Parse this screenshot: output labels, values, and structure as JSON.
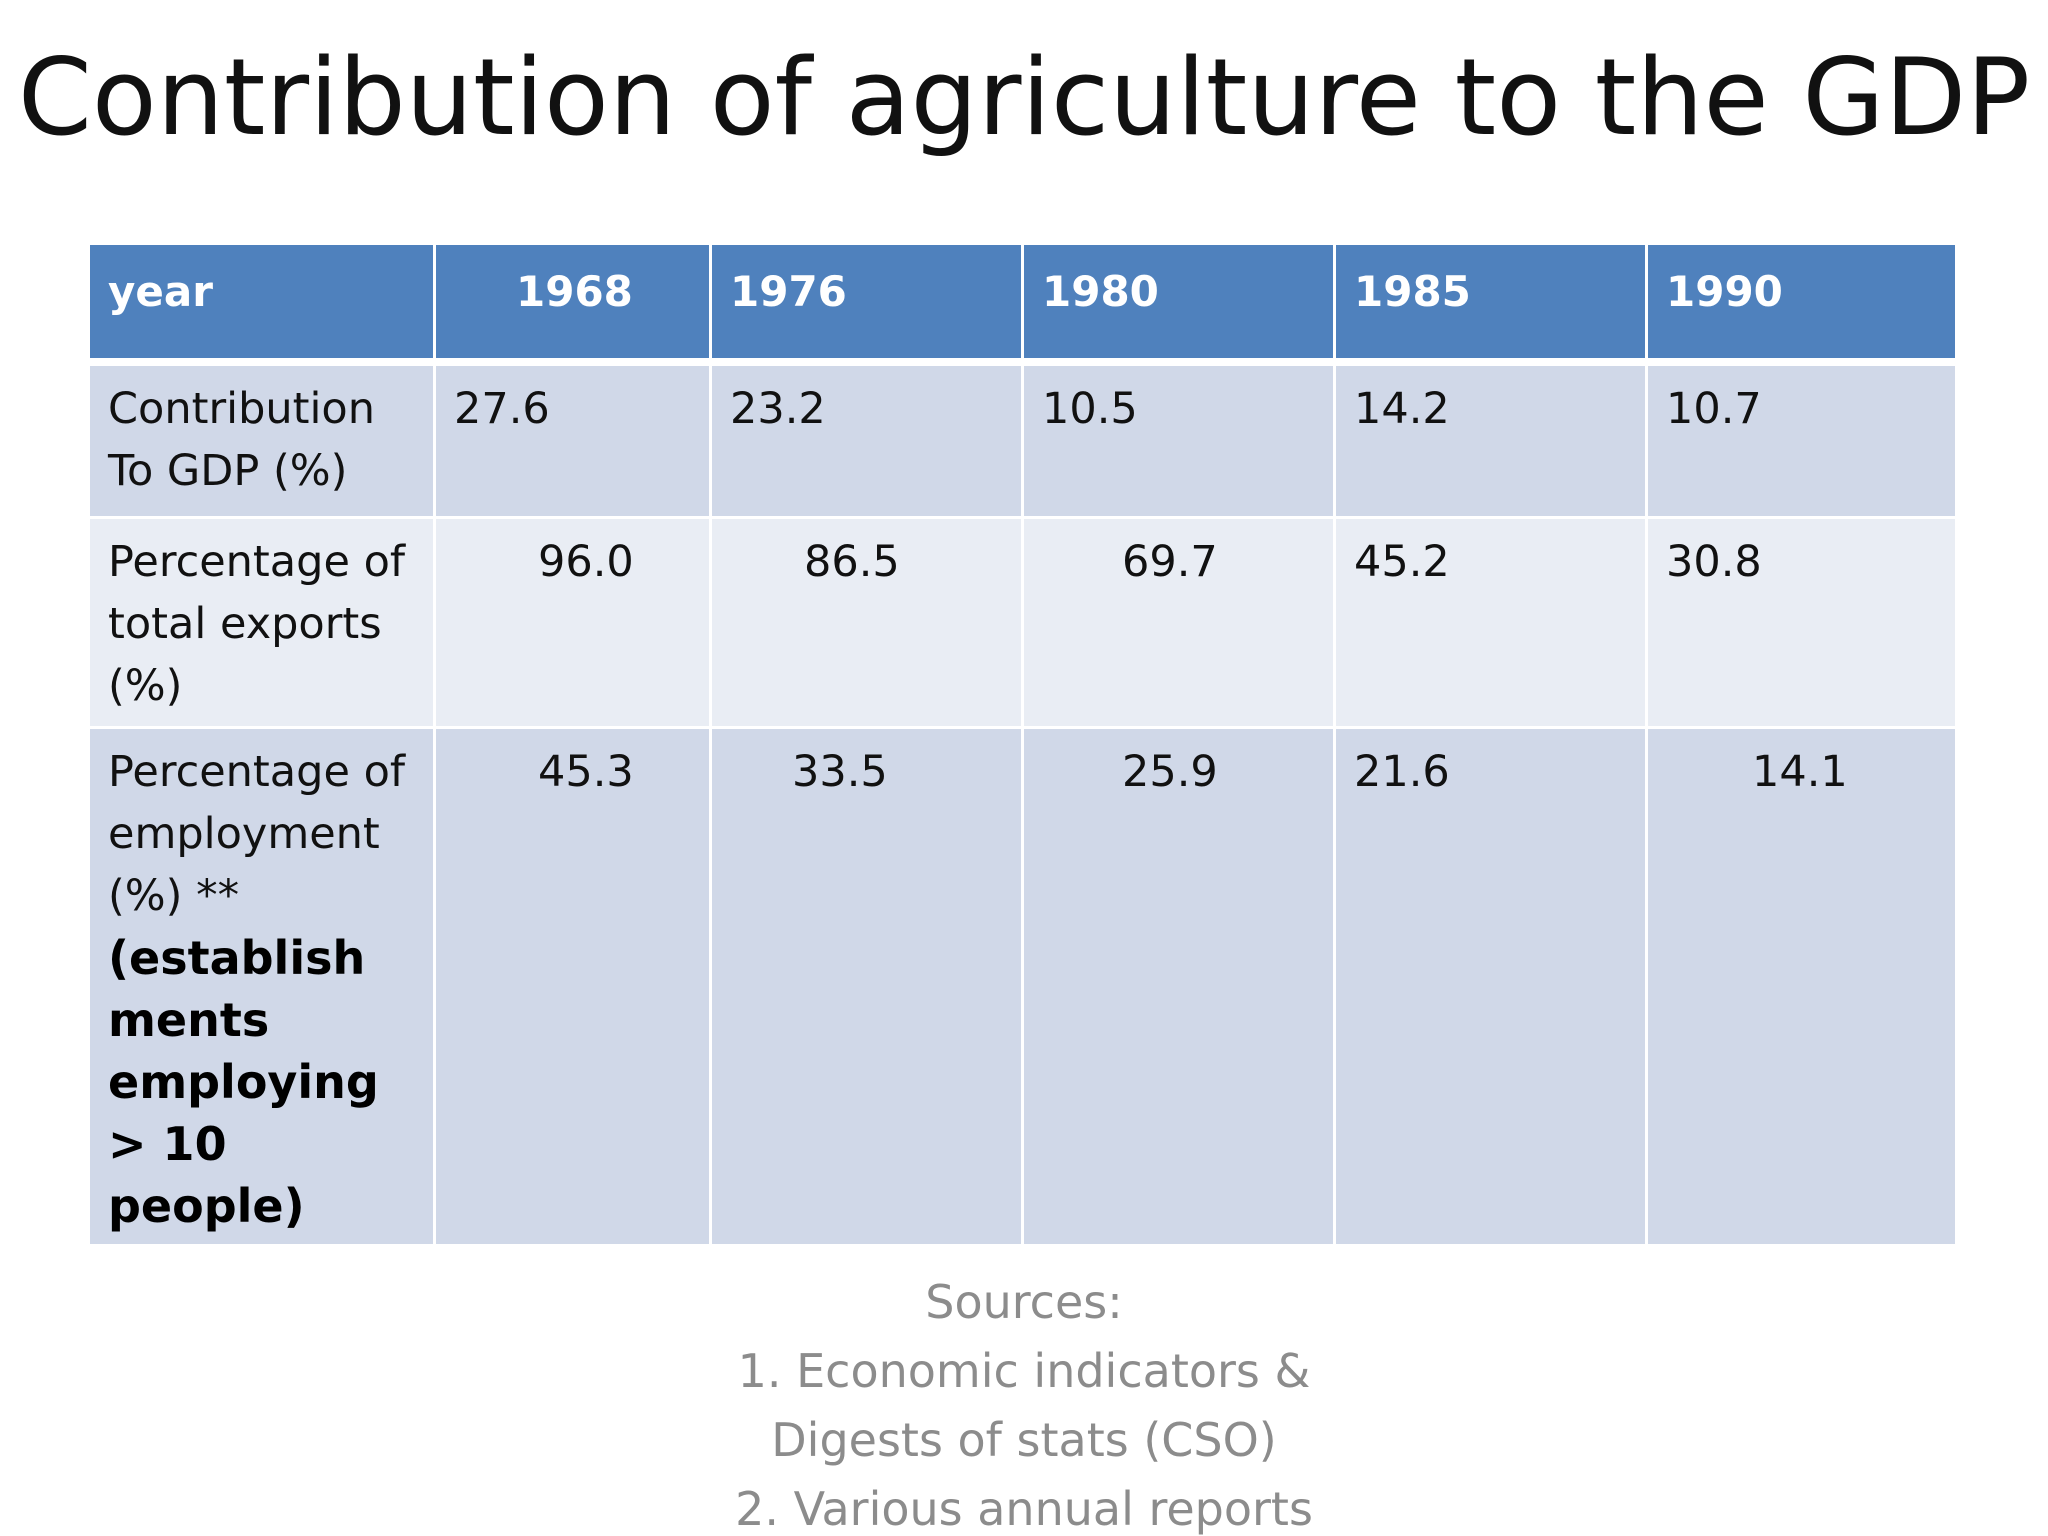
{
  "slide": {
    "title": "Contribution of agriculture to the GDP"
  },
  "table": {
    "header": {
      "label": "year",
      "years": [
        "1968",
        "1976",
        "1980",
        "1985",
        "1990"
      ]
    },
    "rows": [
      {
        "label": "Contribution\nTo GDP (%)",
        "values": [
          "27.6",
          "23.2",
          "10.5",
          "14.2",
          "10.7"
        ]
      },
      {
        "label": "Percentage of\ntotal exports\n(%)",
        "values": [
          "96.0",
          "86.5",
          "69.7",
          "45.2",
          "30.8"
        ]
      },
      {
        "label": "Percentage of\nemployment\n(%) **",
        "note": "(establish\nments\nemploying\n> 10\npeople)",
        "values": [
          "45.3",
          "33.5",
          "25.9",
          "21.6",
          "14.1"
        ]
      }
    ]
  },
  "sources": {
    "heading": "Sources:",
    "lines": [
      "1. Economic indicators &",
      "Digests of stats (CSO)",
      "2. Various annual reports"
    ]
  }
}
